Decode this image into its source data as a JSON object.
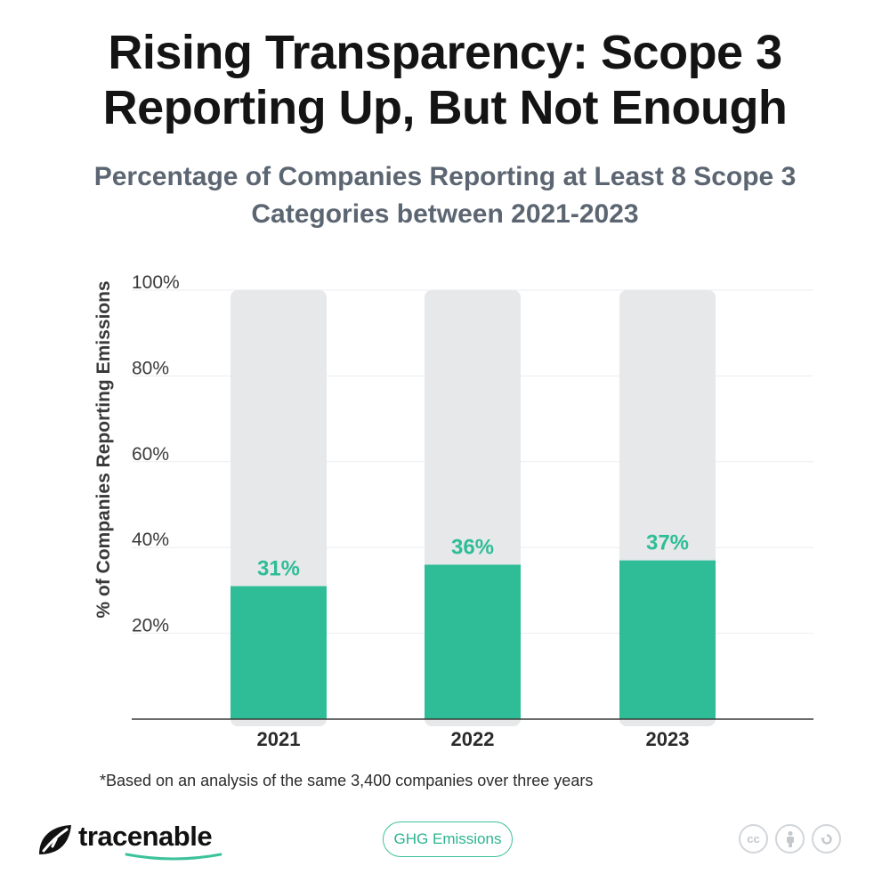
{
  "title": "Rising Transparency: Scope 3 Reporting Up, But Not Enough",
  "subtitle": "Percentage of Companies Reporting at Least 8 Scope 3 Categories between 2021-2023",
  "footnote": "*Based on an analysis of the same 3,400 companies over three years",
  "brand": {
    "name": "tracenable"
  },
  "tag": "GHG Emissions",
  "license_icons": [
    "cc-icon",
    "attribution-icon",
    "share-alike-icon"
  ],
  "colors": {
    "bar": "#2ebd97",
    "track": "#e6e8ea",
    "label": "#2ebd97",
    "accent": "#3cc29b"
  },
  "chart_data": {
    "type": "bar",
    "categories": [
      "2021",
      "2022",
      "2023"
    ],
    "values": [
      31,
      36,
      37
    ],
    "data_labels": [
      "31%",
      "36%",
      "37%"
    ],
    "ylabel": "% of Companies Reporting Emissions",
    "xlabel": "",
    "ylim": [
      0,
      100
    ],
    "yticks": [
      20,
      40,
      60,
      80,
      100
    ],
    "ytick_labels": [
      "20%",
      "40%",
      "60%",
      "80%",
      "100%"
    ],
    "grid": true,
    "background_track_max": 100
  }
}
